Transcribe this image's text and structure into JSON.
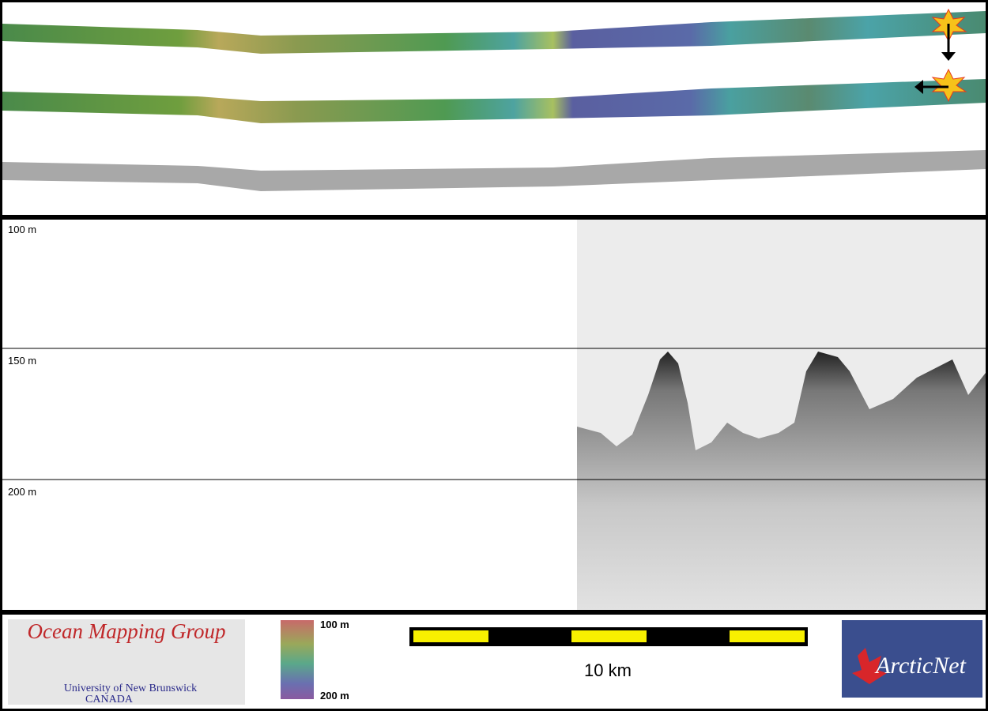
{
  "depth_scale": {
    "labels": [
      "100 m",
      "150 m",
      "200 m"
    ]
  },
  "footer": {
    "logo": {
      "title": "Ocean Mapping Group",
      "line1": "University of New Brunswick",
      "line2": "CANADA"
    },
    "colorbar": {
      "top": "100 m",
      "bottom": "200 m"
    },
    "scale_bar": {
      "label": "10 km"
    },
    "partner": {
      "name": "ArcticNet"
    }
  }
}
